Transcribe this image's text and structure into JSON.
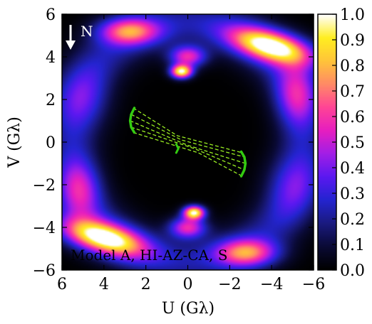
{
  "chart_data": {
    "type": "heatmap",
    "title": "",
    "xlabel": "U (Gλ)",
    "ylabel": "V (Gλ)",
    "xlim": [
      6,
      -6
    ],
    "ylim": [
      -6,
      6
    ],
    "xticks": [
      {
        "value": 6,
        "label": "6"
      },
      {
        "value": 4,
        "label": "4"
      },
      {
        "value": 2,
        "label": "2"
      },
      {
        "value": 0,
        "label": "0"
      },
      {
        "value": -2,
        "label": "−2"
      },
      {
        "value": -4,
        "label": "−4"
      },
      {
        "value": -6,
        "label": "−6"
      }
    ],
    "yticks": [
      {
        "value": 6,
        "label": "6"
      },
      {
        "value": 4,
        "label": "4"
      },
      {
        "value": 2,
        "label": "2"
      },
      {
        "value": 0,
        "label": "0"
      },
      {
        "value": -2,
        "label": "−2"
      },
      {
        "value": -4,
        "label": "−4"
      },
      {
        "value": -6,
        "label": "−6"
      }
    ],
    "colorbar": {
      "range": [
        0.0,
        1.0
      ],
      "ticks": [
        {
          "value": 1.0,
          "label": "1.0"
        },
        {
          "value": 0.9,
          "label": "0.9"
        },
        {
          "value": 0.8,
          "label": "0.8"
        },
        {
          "value": 0.7,
          "label": "0.7"
        },
        {
          "value": 0.6,
          "label": "0.6"
        },
        {
          "value": 0.5,
          "label": "0.5"
        },
        {
          "value": 0.4,
          "label": "0.4"
        },
        {
          "value": 0.3,
          "label": "0.3"
        },
        {
          "value": 0.2,
          "label": "0.2"
        },
        {
          "value": 0.1,
          "label": "0.1"
        },
        {
          "value": 0.0,
          "label": "0.0"
        }
      ],
      "colormap": [
        "#000000",
        "#0a0a35",
        "#1a1a80",
        "#2424d0",
        "#5a18f0",
        "#a21ee6",
        "#e61ec0",
        "#ff4496",
        "#ff8a66",
        "#ffc43a",
        "#ffee20",
        "#ffffff"
      ]
    },
    "annotations": {
      "model_label": "Model A, HI-AZ-CA, S",
      "north_label": "N"
    },
    "intensity_features": [
      {
        "u": 4.0,
        "v": -4.5,
        "amp": 0.95,
        "su": 1.4,
        "sv": 0.5,
        "rot": 0.25
      },
      {
        "u": -4.0,
        "v": 4.5,
        "amp": 0.95,
        "su": 1.4,
        "sv": 0.5,
        "rot": 0.25
      },
      {
        "u": 0.3,
        "v": 3.3,
        "amp": 1.0,
        "su": 0.35,
        "sv": 0.22,
        "rot": 0
      },
      {
        "u": -0.3,
        "v": -3.3,
        "amp": 1.0,
        "su": 0.35,
        "sv": 0.22,
        "rot": 0
      },
      {
        "u": 0.0,
        "v": 4.0,
        "amp": 0.55,
        "su": 0.6,
        "sv": 0.35,
        "rot": 0
      },
      {
        "u": 0.0,
        "v": -4.0,
        "amp": 0.55,
        "su": 0.6,
        "sv": 0.35,
        "rot": 0
      },
      {
        "u": 2.8,
        "v": 5.2,
        "amp": 0.6,
        "su": 1.0,
        "sv": 0.45,
        "rot": 0
      },
      {
        "u": -2.8,
        "v": -5.2,
        "amp": 0.6,
        "su": 1.0,
        "sv": 0.45,
        "rot": 0
      },
      {
        "u": -5.2,
        "v": 2.0,
        "amp": 0.45,
        "su": 0.7,
        "sv": 1.2,
        "rot": 0
      },
      {
        "u": 5.2,
        "v": -2.0,
        "amp": 0.45,
        "su": 0.7,
        "sv": 1.2,
        "rot": 0
      },
      {
        "u": 5.0,
        "v": 1.5,
        "amp": 0.3,
        "su": 0.9,
        "sv": 1.3,
        "rot": 0
      },
      {
        "u": -5.0,
        "v": -1.5,
        "amp": 0.3,
        "su": 0.9,
        "sv": 1.3,
        "rot": 0
      }
    ],
    "uv_coverage": {
      "color_arc": "#33cc11",
      "color_baseline": "#99ee22",
      "arcs": [
        {
          "points": [
            [
              2.55,
              1.6
            ],
            [
              2.7,
              1.3
            ],
            [
              2.75,
              1.0
            ],
            [
              2.7,
              0.7
            ],
            [
              2.55,
              0.45
            ]
          ]
        },
        {
          "points": [
            [
              -2.55,
              -1.6
            ],
            [
              -2.7,
              -1.3
            ],
            [
              -2.75,
              -1.0
            ],
            [
              -2.7,
              -0.7
            ],
            [
              -2.55,
              -0.45
            ]
          ]
        }
      ],
      "baselines": [
        {
          "points": [
            [
              2.6,
              1.6
            ],
            [
              0.5,
              0.3
            ],
            [
              -2.6,
              -0.5
            ]
          ]
        },
        {
          "points": [
            [
              2.7,
              1.3
            ],
            [
              0.3,
              0.1
            ],
            [
              -2.7,
              -0.7
            ]
          ]
        },
        {
          "points": [
            [
              2.75,
              1.0
            ],
            [
              0.0,
              -0.15
            ],
            [
              -2.75,
              -1.0
            ]
          ]
        },
        {
          "points": [
            [
              2.7,
              0.7
            ],
            [
              -0.3,
              -0.3
            ],
            [
              -2.7,
              -1.3
            ]
          ]
        },
        {
          "points": [
            [
              2.6,
              0.45
            ],
            [
              -0.5,
              -0.5
            ],
            [
              -2.6,
              -1.6
            ]
          ]
        }
      ],
      "short_baseline": {
        "points": [
          [
            0.55,
            -0.1
          ],
          [
            0.45,
            -0.3
          ],
          [
            0.55,
            -0.5
          ]
        ]
      }
    }
  }
}
